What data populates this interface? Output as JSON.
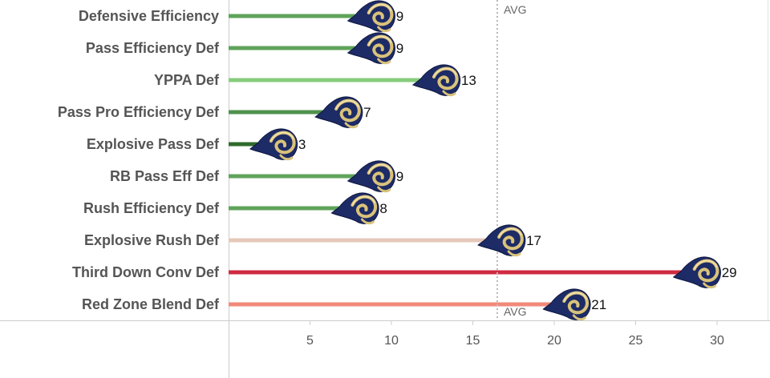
{
  "chart_data": {
    "type": "bar",
    "title": "",
    "xlabel": "",
    "ylabel": "",
    "categories": [
      "Defensive Efficiency",
      "Pass Efficiency Def",
      "YPPA Def",
      "Pass Pro Efficiency Def",
      "Explosive Pass Def",
      "RB Pass Eff Def",
      "Rush Efficiency Def",
      "Explosive Rush Def",
      "Third Down Conv Def",
      "Red Zone Blend Def"
    ],
    "values": [
      9,
      9,
      13,
      7,
      3,
      9,
      8,
      17,
      29,
      21
    ],
    "bar_colors": [
      "#5fa35a",
      "#5fa35a",
      "#86cc7d",
      "#4f914c",
      "#2f6b2c",
      "#5fa35a",
      "#5fa35a",
      "#e5c8ba",
      "#cf2a40",
      "#f1897a"
    ],
    "xlim": [
      0,
      33
    ],
    "x_ticks": [
      5,
      10,
      15,
      20,
      25,
      30
    ],
    "reference_line": {
      "value": 16.5,
      "label": "AVG",
      "style": "dotted"
    },
    "marker_icon": "rams-helmet-logo",
    "orientation": "horizontal",
    "grid": false
  }
}
